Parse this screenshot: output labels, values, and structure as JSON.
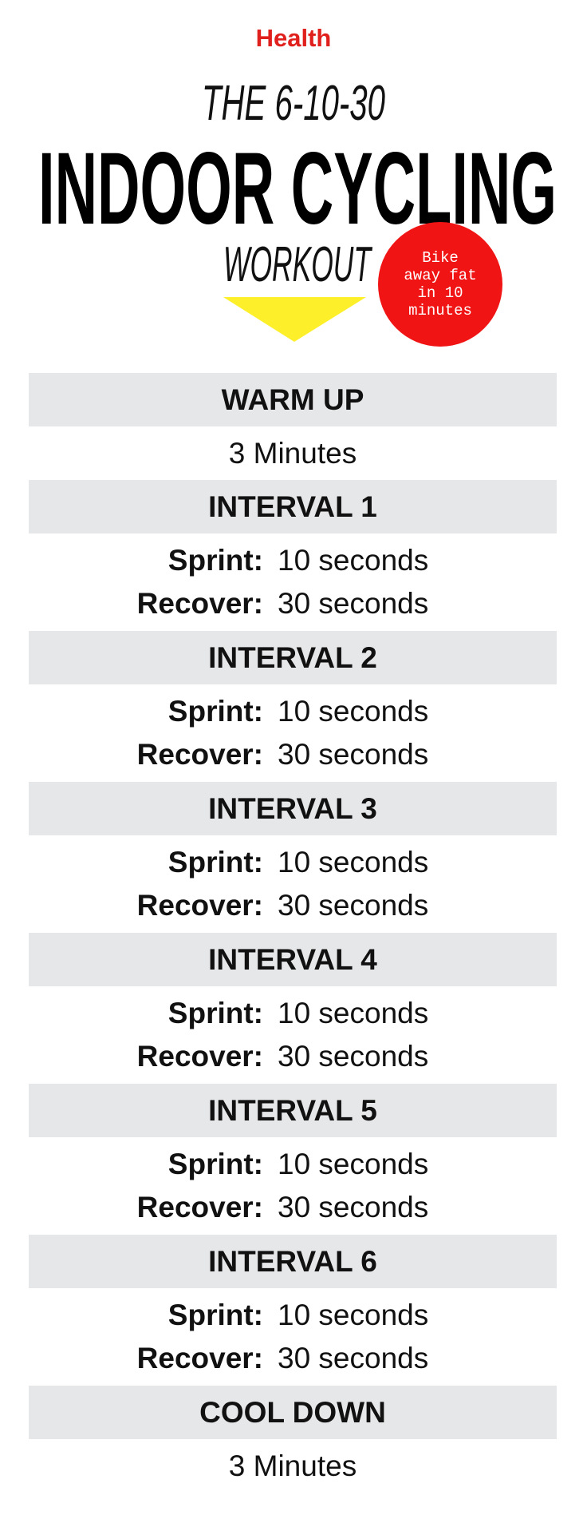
{
  "header": {
    "brand": "Health",
    "title_top": "THE 6-10-30",
    "title_main": "INDOOR CYCLING",
    "title_bottom": "WORKOUT",
    "badge": [
      "Bike",
      "away fat",
      "in 10",
      "minutes"
    ]
  },
  "sections": [
    {
      "heading": "WARM UP",
      "lines": [
        {
          "text": "3 Minutes"
        }
      ]
    },
    {
      "heading": "INTERVAL 1",
      "lines": [
        {
          "label": "Sprint:",
          "text": "10 seconds"
        },
        {
          "label": "Recover:",
          "text": "30 seconds"
        }
      ]
    },
    {
      "heading": "INTERVAL 2",
      "lines": [
        {
          "label": "Sprint:",
          "text": "10 seconds"
        },
        {
          "label": "Recover:",
          "text": "30 seconds"
        }
      ]
    },
    {
      "heading": "INTERVAL 3",
      "lines": [
        {
          "label": "Sprint:",
          "text": "10 seconds"
        },
        {
          "label": "Recover:",
          "text": "30 seconds"
        }
      ]
    },
    {
      "heading": "INTERVAL 4",
      "lines": [
        {
          "label": "Sprint:",
          "text": "10 seconds"
        },
        {
          "label": "Recover:",
          "text": "30 seconds"
        }
      ]
    },
    {
      "heading": "INTERVAL 5",
      "lines": [
        {
          "label": "Sprint:",
          "text": "10 seconds"
        },
        {
          "label": "Recover:",
          "text": "30 seconds"
        }
      ]
    },
    {
      "heading": "INTERVAL 6",
      "lines": [
        {
          "label": "Sprint:",
          "text": "10 seconds"
        },
        {
          "label": "Recover:",
          "text": "30 seconds"
        }
      ]
    },
    {
      "heading": "COOL DOWN",
      "lines": [
        {
          "text": "3 Minutes"
        }
      ]
    }
  ]
}
